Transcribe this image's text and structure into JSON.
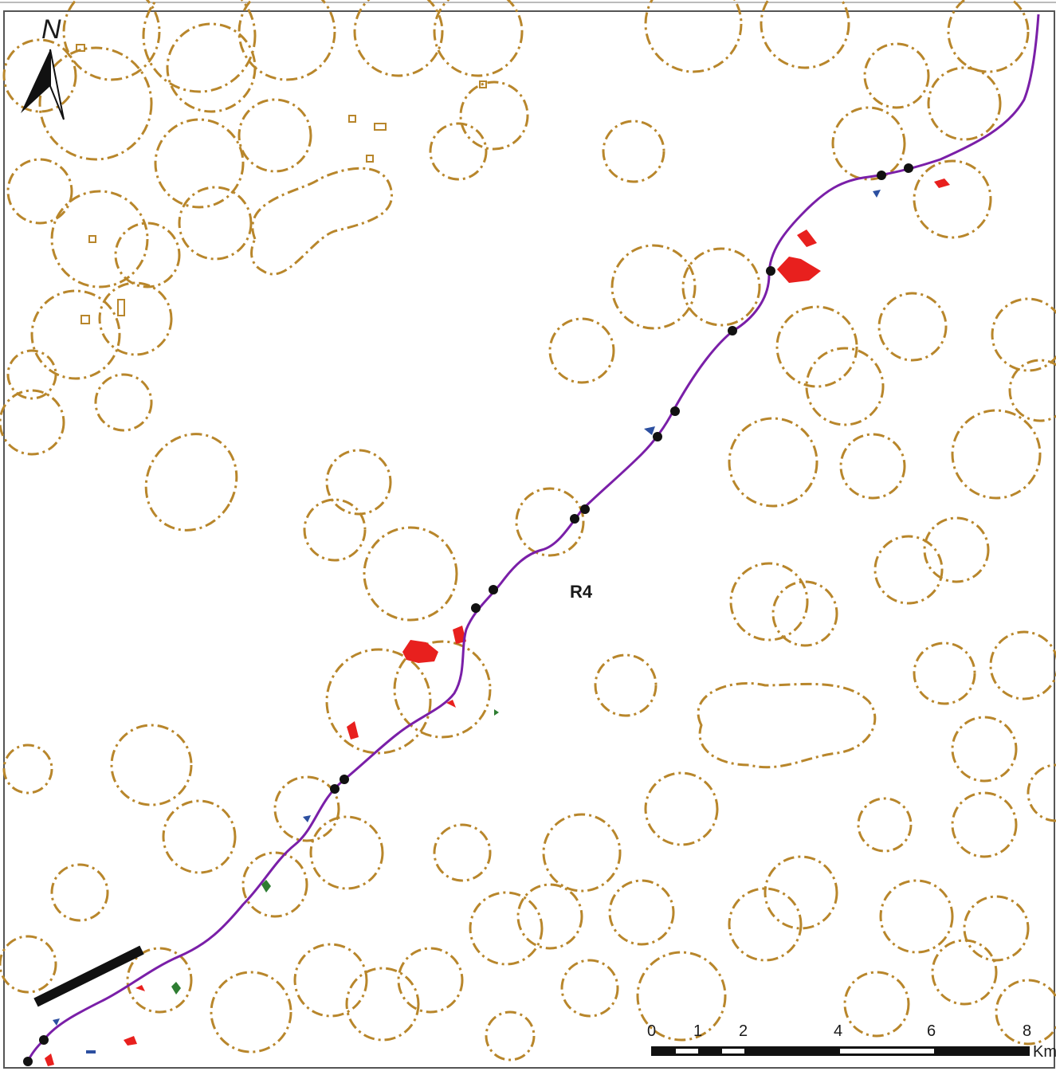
{
  "map": {
    "route_label": "R4",
    "north_label": "N",
    "scale_ticks": [
      "0",
      "1",
      "2",
      "4",
      "6",
      "8"
    ],
    "scale_unit": "Km",
    "colors": {
      "route": "#7a1fa8",
      "buffer_outline": "#b8862b",
      "settlement": "#e8201e",
      "stop": "#111111",
      "frame": "#444444"
    },
    "icons": [
      "north-arrow-icon",
      "scale-bar-icon"
    ]
  }
}
